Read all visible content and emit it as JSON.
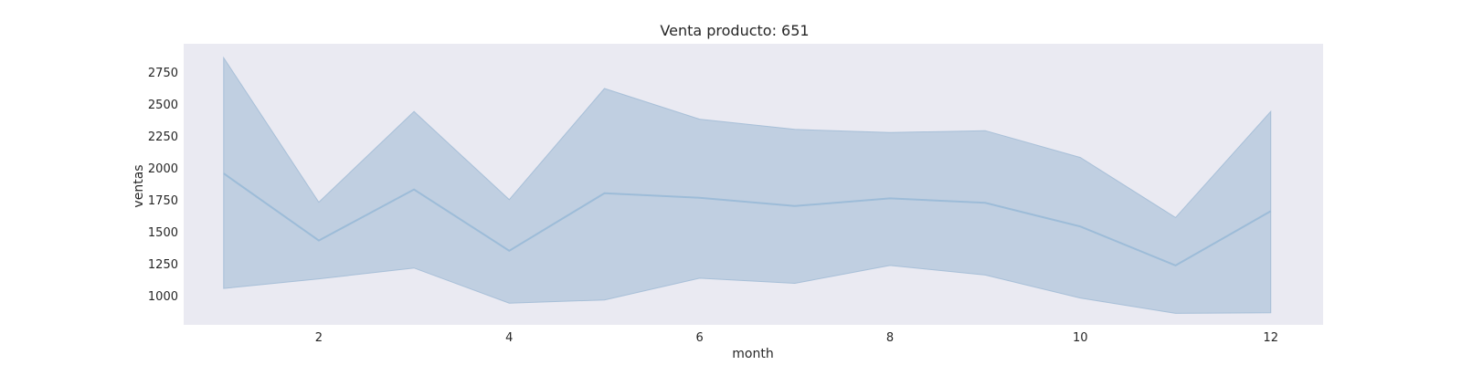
{
  "chart_data": {
    "type": "area",
    "title": "Venta producto: 651",
    "xlabel": "month",
    "ylabel": "ventas",
    "xlim": [
      0.58,
      12.55
    ],
    "ylim": [
      770,
      2970
    ],
    "xticks": [
      2,
      4,
      6,
      8,
      10,
      12
    ],
    "yticks": [
      1000,
      1250,
      1500,
      1750,
      2000,
      2250,
      2500,
      2750
    ],
    "grid": false,
    "colors": {
      "plot_background": "#eaeaf2",
      "band": "#a3bcd6",
      "line": "#9dbcd8"
    },
    "x": [
      1,
      2,
      3,
      4,
      5,
      6,
      7,
      8,
      9,
      10,
      11,
      12
    ],
    "mean": [
      1955,
      1430,
      1830,
      1350,
      1800,
      1765,
      1700,
      1760,
      1725,
      1540,
      1235,
      1660
    ],
    "lower": [
      1055,
      1130,
      1215,
      940,
      965,
      1135,
      1095,
      1235,
      1160,
      980,
      860,
      865
    ],
    "upper": [
      2860,
      1730,
      2440,
      1750,
      2620,
      2380,
      2300,
      2275,
      2290,
      2080,
      1610,
      2440
    ]
  }
}
